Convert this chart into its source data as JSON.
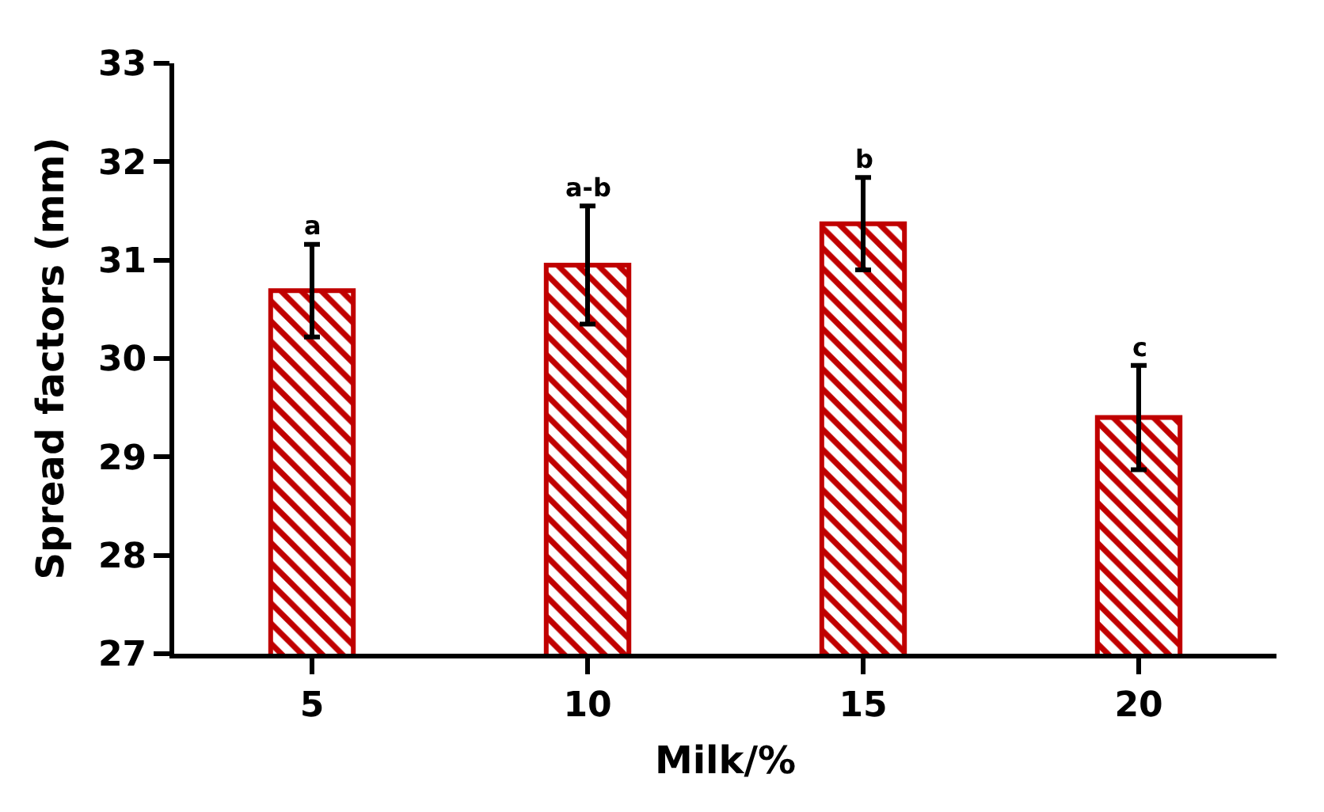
{
  "chart_data": {
    "type": "bar",
    "xlabel": "Milk/%",
    "ylabel": "Spread factors (mm)",
    "categories": [
      "5",
      "10",
      "15",
      "20"
    ],
    "values": [
      30.69,
      30.95,
      31.37,
      29.4
    ],
    "errors": [
      0.47,
      0.6,
      0.47,
      0.53
    ],
    "color": "#c00000",
    "ylim": [
      27,
      33
    ],
    "yticks": [
      27,
      28,
      29,
      30,
      31,
      32,
      33
    ],
    "annotations": [
      {
        "text": "a",
        "x": "5",
        "y": 31.16
      },
      {
        "text": "a-b",
        "x": "10",
        "y": 31.55
      },
      {
        "text": "b",
        "x": "15",
        "y": 31.84
      },
      {
        "text": "c",
        "x": "20",
        "y": 29.93
      }
    ]
  }
}
